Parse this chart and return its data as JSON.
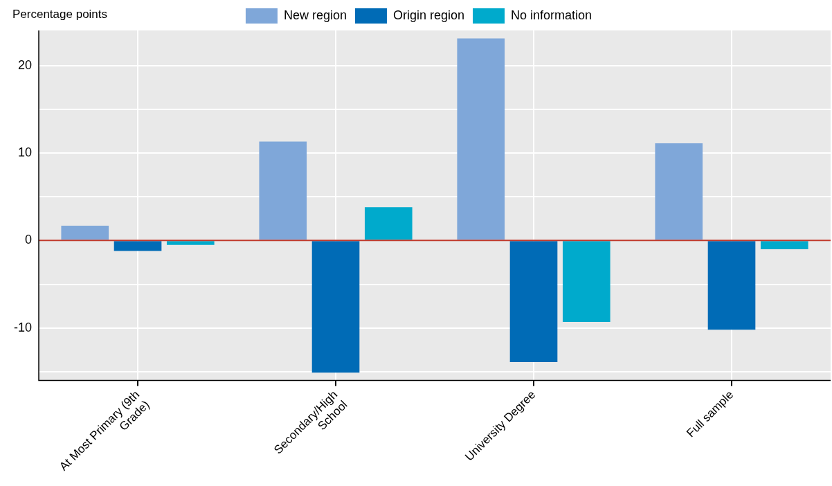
{
  "chart_data": {
    "type": "bar",
    "ylabel": "Percentage points",
    "categories": [
      "At Most Primary (9th Grade)",
      "Secondary/High School",
      "University Degree",
      "Full sample"
    ],
    "series": [
      {
        "name": "New region",
        "color": "#7fa7d9",
        "values": [
          1.7,
          11.3,
          23.1,
          11.1
        ]
      },
      {
        "name": "Origin region",
        "color": "#006bb6",
        "values": [
          -1.2,
          -15.1,
          -13.9,
          -10.2
        ]
      },
      {
        "name": "No information",
        "color": "#00aacc",
        "values": [
          -0.5,
          3.8,
          -9.3,
          -1.0
        ]
      }
    ],
    "ylim": [
      -16,
      24
    ],
    "yticks": [
      {
        "value": -15,
        "label": null
      },
      -10,
      {
        "value": -5,
        "label": null
      },
      0,
      {
        "value": 5,
        "label": null
      },
      10,
      {
        "value": 15,
        "label": null
      },
      20
    ],
    "ref_lines": [
      {
        "axis": "y",
        "value": 0,
        "color": "#c0392b"
      }
    ],
    "grid": true,
    "legend": "top"
  }
}
